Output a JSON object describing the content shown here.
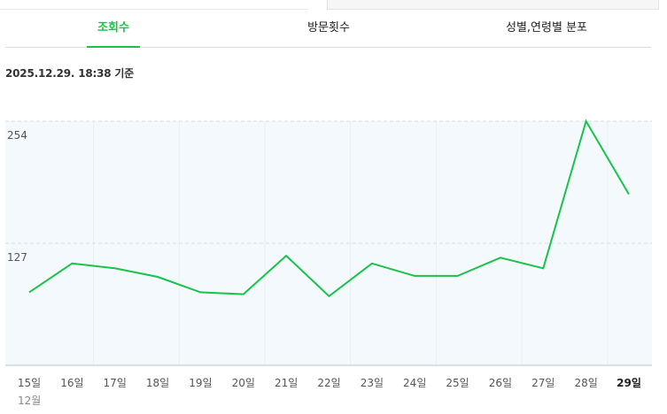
{
  "tabs": [
    {
      "label": "조회수",
      "active": true
    },
    {
      "label": "방문횟수",
      "active": false
    },
    {
      "label": "성별,연령별 분포",
      "active": false
    }
  ],
  "basis_text": "2025.12.29. 18:38 기준",
  "month_label": "12월",
  "colors": {
    "accent": "#19c34a",
    "line": "#19c34a",
    "plot_bg": "#f3f9fc",
    "grid": "#cfe3ec"
  },
  "chart_data": {
    "type": "line",
    "title": "",
    "xlabel": "",
    "ylabel": "",
    "categories": [
      "15일",
      "16일",
      "17일",
      "18일",
      "19일",
      "20일",
      "21일",
      "22일",
      "23일",
      "24일",
      "25일",
      "26일",
      "27일",
      "28일",
      "29일"
    ],
    "highlight_category": "29일",
    "y_ticks": [
      254,
      127
    ],
    "ylim": [
      0,
      254
    ],
    "grid": true,
    "series": [
      {
        "values": [
          76,
          106,
          101,
          92,
          76,
          74,
          114,
          72,
          106,
          93,
          93,
          112,
          101,
          254,
          178
        ]
      }
    ]
  }
}
